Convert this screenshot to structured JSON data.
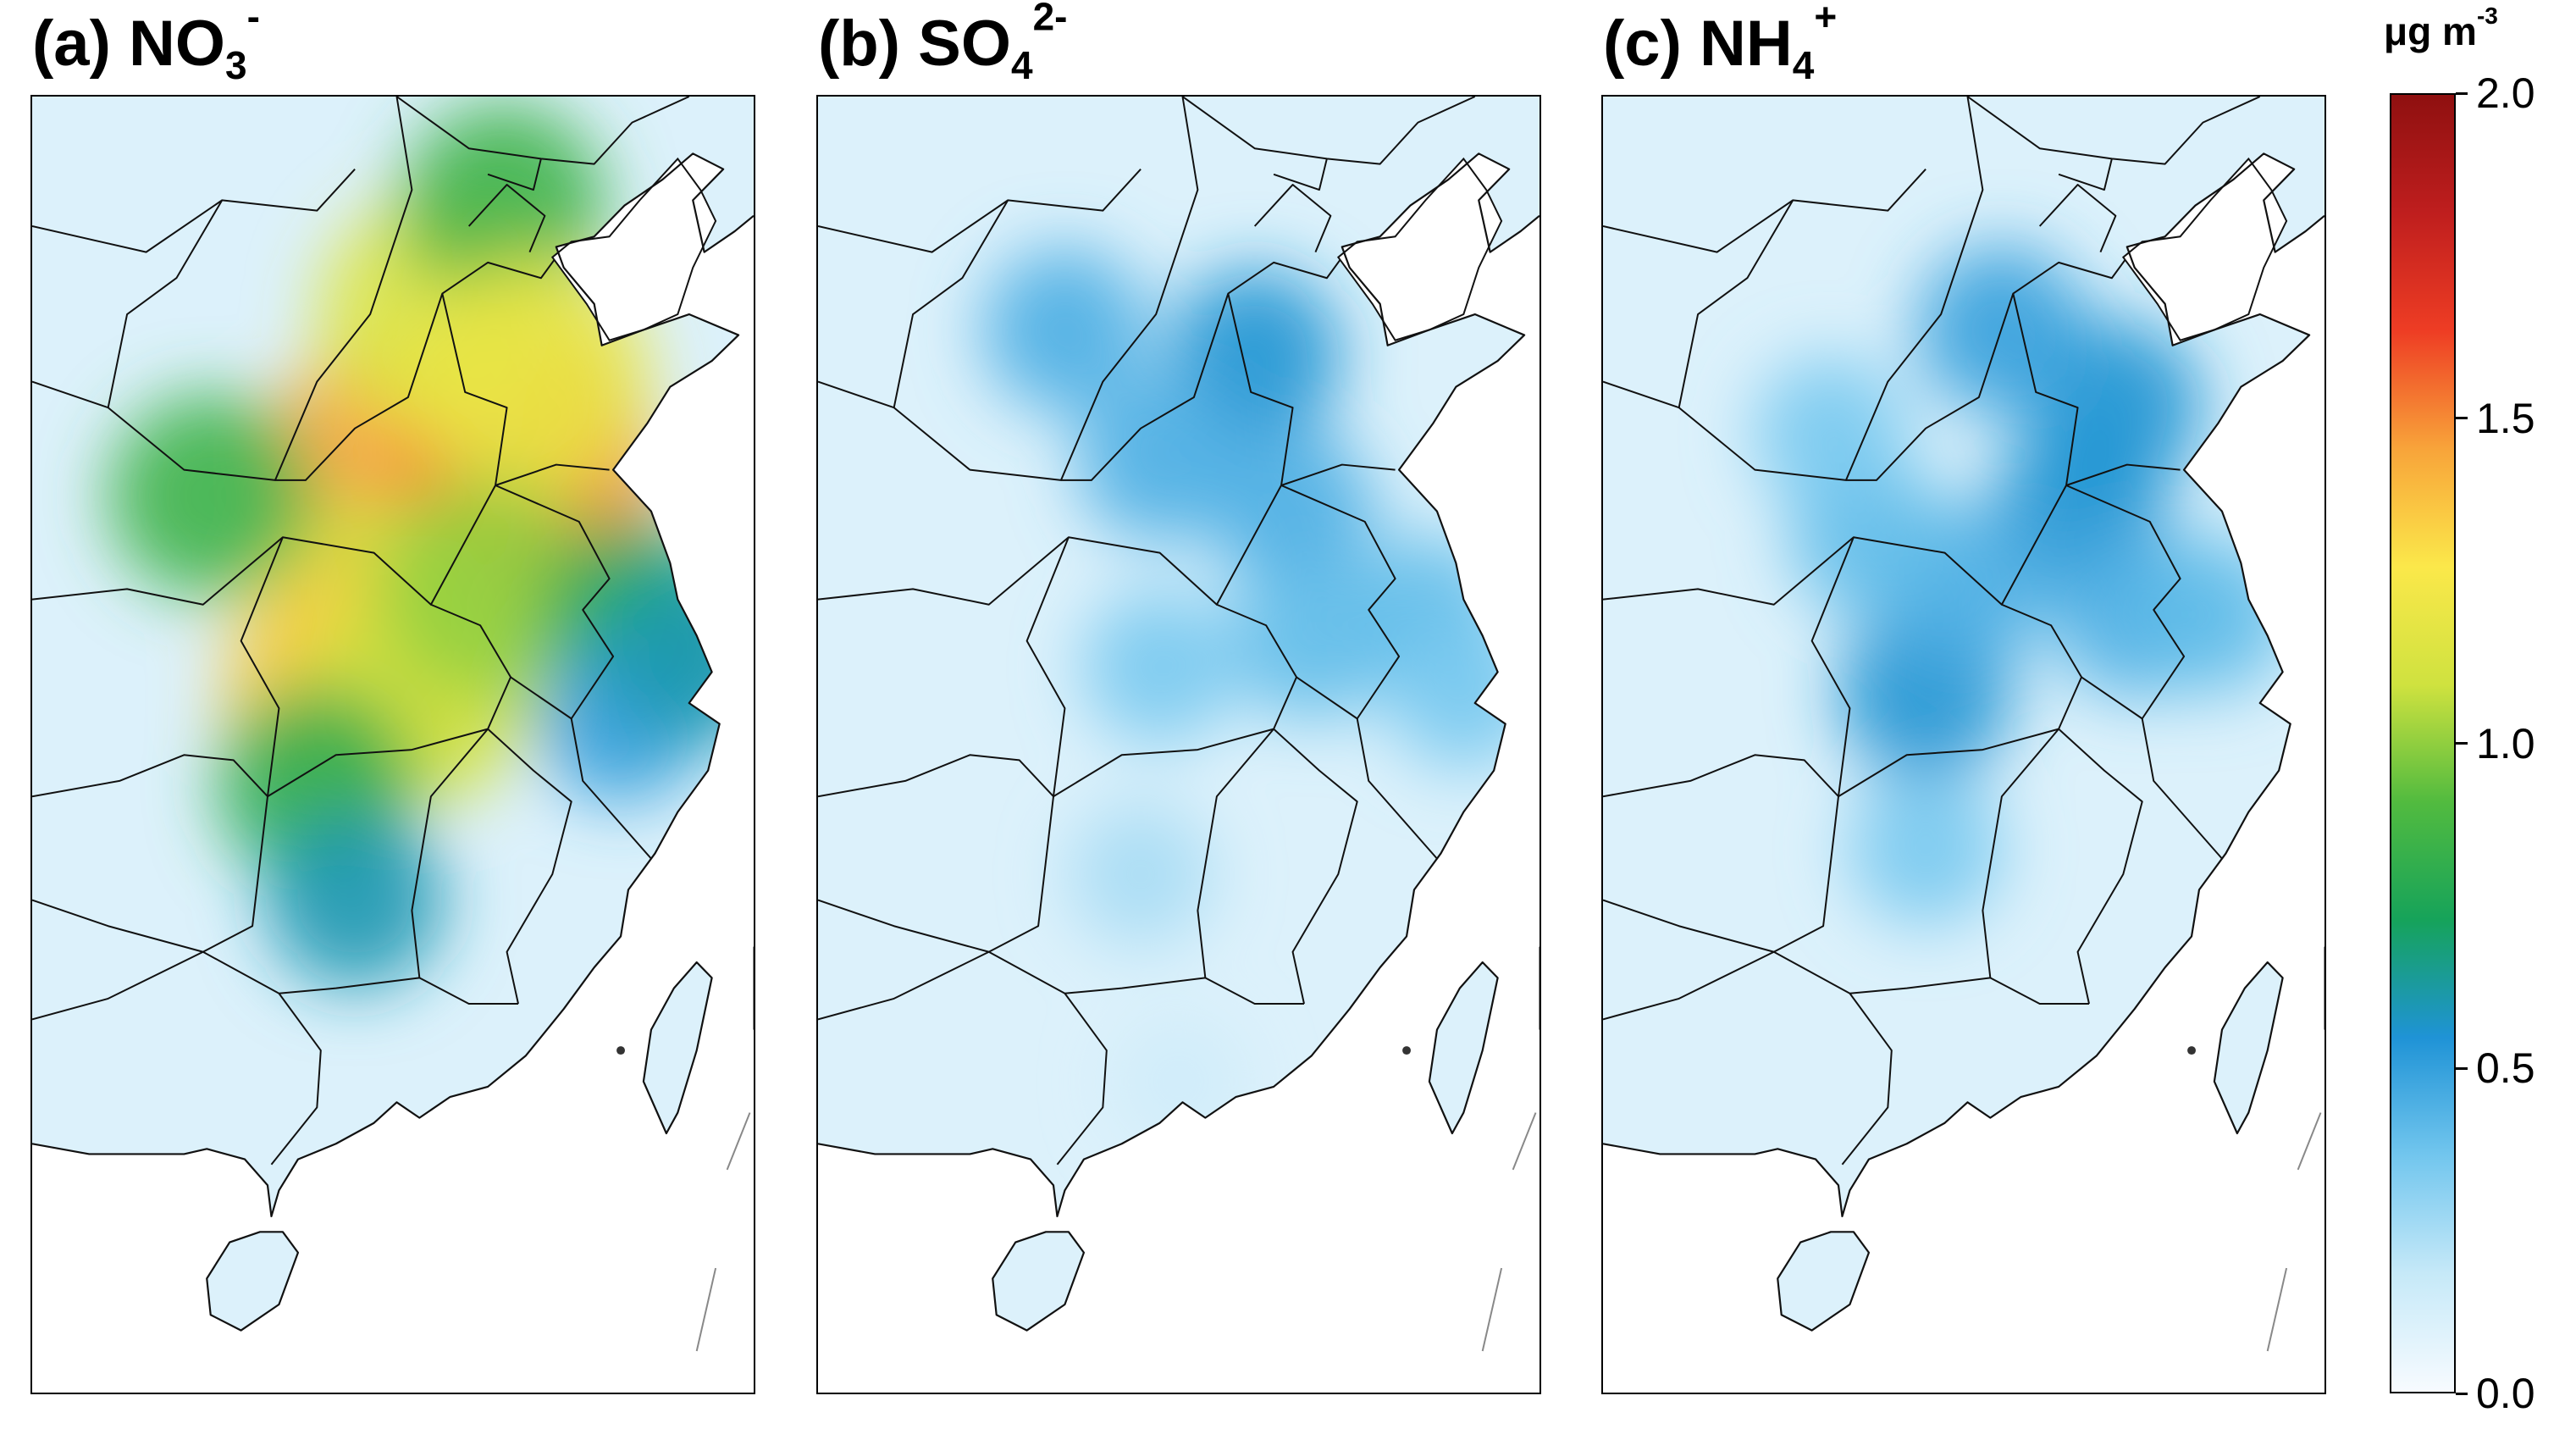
{
  "panels": [
    {
      "letter": "(a)",
      "species": "NO",
      "sub": "3",
      "sup": "-",
      "hotspots": [
        {
          "lon": 113.6,
          "lat": 34.8,
          "value": 1.45
        },
        {
          "lon": 116.9,
          "lat": 34.9,
          "value": 1.5
        },
        {
          "lon": 114.6,
          "lat": 37.8,
          "value": 1.15
        },
        {
          "lon": 116.4,
          "lat": 39.9,
          "value": 0.85
        },
        {
          "lon": 117.1,
          "lat": 36.6,
          "value": 1.2
        },
        {
          "lon": 113.0,
          "lat": 32.0,
          "value": 1.1
        },
        {
          "lon": 112.4,
          "lat": 30.6,
          "value": 1.35
        },
        {
          "lon": 114.3,
          "lat": 30.6,
          "value": 1.1
        },
        {
          "lon": 111.5,
          "lat": 28.7,
          "value": 0.8
        },
        {
          "lon": 116.0,
          "lat": 32.5,
          "value": 1.0
        },
        {
          "lon": 120.0,
          "lat": 32.0,
          "value": 0.75
        },
        {
          "lon": 112.5,
          "lat": 26.5,
          "value": 0.6
        },
        {
          "lon": 108.7,
          "lat": 34.3,
          "value": 0.85
        },
        {
          "lon": 119.5,
          "lat": 30.0,
          "value": 0.5
        },
        {
          "lon": 121.5,
          "lat": 31.2,
          "value": 0.6
        }
      ]
    },
    {
      "letter": "(b)",
      "species": "SO",
      "sub": "4",
      "sup": "2-",
      "hotspots": [
        {
          "lon": 115.5,
          "lat": 37.0,
          "value": 0.55
        },
        {
          "lon": 110.5,
          "lat": 37.5,
          "value": 0.45
        },
        {
          "lon": 113.0,
          "lat": 35.0,
          "value": 0.45
        },
        {
          "lon": 116.5,
          "lat": 34.0,
          "value": 0.45
        },
        {
          "lon": 117.0,
          "lat": 31.5,
          "value": 0.4
        },
        {
          "lon": 113.0,
          "lat": 31.0,
          "value": 0.35
        },
        {
          "lon": 120.0,
          "lat": 32.0,
          "value": 0.4
        },
        {
          "lon": 121.0,
          "lat": 30.5,
          "value": 0.35
        },
        {
          "lon": 112.5,
          "lat": 27.0,
          "value": 0.25
        },
        {
          "lon": 113.5,
          "lat": 23.0,
          "value": 0.15
        }
      ]
    },
    {
      "letter": "(c)",
      "species": "NH",
      "sub": "4",
      "sup": "+",
      "hotspots": [
        {
          "lon": 117.5,
          "lat": 36.0,
          "value": 0.55
        },
        {
          "lon": 116.5,
          "lat": 34.0,
          "value": 0.55
        },
        {
          "lon": 114.5,
          "lat": 37.5,
          "value": 0.5
        },
        {
          "lon": 112.5,
          "lat": 30.5,
          "value": 0.55
        },
        {
          "lon": 113.5,
          "lat": 32.5,
          "value": 0.45
        },
        {
          "lon": 111.0,
          "lat": 33.5,
          "value": 0.4
        },
        {
          "lon": 118.0,
          "lat": 32.0,
          "value": 0.45
        },
        {
          "lon": 120.0,
          "lat": 32.0,
          "value": 0.4
        },
        {
          "lon": 112.5,
          "lat": 27.5,
          "value": 0.35
        },
        {
          "lon": 110.0,
          "lat": 35.5,
          "value": 0.35
        }
      ]
    }
  ],
  "colorbar": {
    "unit_main": "μg m",
    "unit_sup": "-3",
    "min": 0.0,
    "max": 2.0,
    "ticks": [
      "0.0",
      "0.5",
      "1.0",
      "1.5",
      "2.0"
    ],
    "colors": [
      "#f7fbff",
      "#c6e9f8",
      "#72c6ee",
      "#1f93d6",
      "#16a35a",
      "#52bb3f",
      "#cfe23f",
      "#fbe84a",
      "#f8a43a",
      "#ee3d24",
      "#bf1e1e",
      "#8f1010"
    ]
  },
  "map": {
    "lon_range": [
      104.0,
      123.0
    ],
    "lat_range": [
      17.0,
      42.0
    ]
  }
}
